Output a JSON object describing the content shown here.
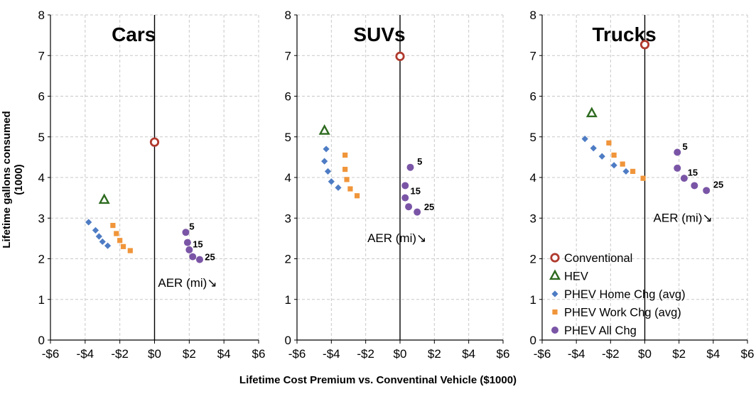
{
  "figure": {
    "xlabel": "Lifetime Cost Premium vs. Conventinal Vehicle ($1000)",
    "ylabel": "Lifetime gallons consumed (1000)"
  },
  "legend": [
    {
      "label": "Conventional",
      "series": "conventional"
    },
    {
      "label": "HEV",
      "series": "hev"
    },
    {
      "label": "PHEV Home Chg (avg)",
      "series": "phev_home"
    },
    {
      "label": "PHEV Work Chg (avg)",
      "series": "phev_work"
    },
    {
      "label": "PHEV All Chg",
      "series": "phev_all"
    }
  ],
  "colors": {
    "conventional": "#b03a2e",
    "hev": "#2d6a1f",
    "phev_home": "#4e7cc4",
    "phev_work": "#f0953a",
    "phev_all": "#7a55a6",
    "grid": "#c8c8c8"
  },
  "chart_data": [
    {
      "type": "scatter",
      "title": "Cars",
      "xlim": [
        -6,
        6
      ],
      "ylim": [
        0,
        8
      ],
      "xticks": [
        "-$6",
        "-$4",
        "-$2",
        "$0",
        "$2",
        "$4",
        "$6"
      ],
      "yticks": [
        "0",
        "1",
        "2",
        "3",
        "4",
        "5",
        "6",
        "7",
        "8"
      ],
      "grid": true,
      "series": [
        {
          "key": "conventional",
          "points": [
            [
              0,
              4.87
            ]
          ]
        },
        {
          "key": "hev",
          "points": [
            [
              -2.9,
              3.45
            ]
          ]
        },
        {
          "key": "phev_home",
          "points": [
            [
              -3.8,
              2.9
            ],
            [
              -3.4,
              2.7
            ],
            [
              -3.2,
              2.55
            ],
            [
              -3.0,
              2.42
            ],
            [
              -2.7,
              2.32
            ]
          ]
        },
        {
          "key": "phev_work",
          "points": [
            [
              -2.4,
              2.82
            ],
            [
              -2.2,
              2.62
            ],
            [
              -2.0,
              2.45
            ],
            [
              -1.8,
              2.3
            ],
            [
              -1.4,
              2.2
            ]
          ]
        },
        {
          "key": "phev_all",
          "points": [
            [
              1.8,
              2.65
            ],
            [
              1.9,
              2.4
            ],
            [
              2.0,
              2.22
            ],
            [
              2.2,
              2.05
            ],
            [
              2.6,
              1.98
            ]
          ]
        }
      ],
      "annotations": [
        {
          "text": "5",
          "x": 2.0,
          "y": 2.8
        },
        {
          "text": "15",
          "x": 2.2,
          "y": 2.37
        },
        {
          "text": "25",
          "x": 2.9,
          "y": 2.05
        },
        {
          "text": "AER (mi)↘",
          "x": 0.2,
          "y": 1.4
        }
      ]
    },
    {
      "type": "scatter",
      "title": "SUVs",
      "xlim": [
        -6,
        6
      ],
      "ylim": [
        0,
        8
      ],
      "xticks": [
        "-$6",
        "-$4",
        "-$2",
        "$0",
        "$2",
        "$4",
        "$6"
      ],
      "yticks": [
        "0",
        "1",
        "2",
        "3",
        "4",
        "5",
        "6",
        "7",
        "8"
      ],
      "grid": true,
      "series": [
        {
          "key": "conventional",
          "points": [
            [
              0,
              6.98
            ]
          ]
        },
        {
          "key": "hev",
          "points": [
            [
              -4.4,
              5.15
            ]
          ]
        },
        {
          "key": "phev_home",
          "points": [
            [
              -4.3,
              4.7
            ],
            [
              -4.4,
              4.4
            ],
            [
              -4.2,
              4.15
            ],
            [
              -4.0,
              3.9
            ],
            [
              -3.6,
              3.75
            ]
          ]
        },
        {
          "key": "phev_work",
          "points": [
            [
              -3.2,
              4.55
            ],
            [
              -3.2,
              4.2
            ],
            [
              -3.1,
              3.95
            ],
            [
              -2.9,
              3.72
            ],
            [
              -2.5,
              3.55
            ]
          ]
        },
        {
          "key": "phev_all",
          "points": [
            [
              0.6,
              4.25
            ],
            [
              0.3,
              3.8
            ],
            [
              0.3,
              3.5
            ],
            [
              0.5,
              3.28
            ],
            [
              1.0,
              3.15
            ]
          ]
        }
      ],
      "annotations": [
        {
          "text": "5",
          "x": 1.0,
          "y": 4.4
        },
        {
          "text": "15",
          "x": 0.6,
          "y": 3.68
        },
        {
          "text": "25",
          "x": 1.4,
          "y": 3.28
        },
        {
          "text": "AER (mi)↘",
          "x": -1.9,
          "y": 2.5
        }
      ]
    },
    {
      "type": "scatter",
      "title": "Trucks",
      "xlim": [
        -6,
        6
      ],
      "ylim": [
        0,
        8
      ],
      "xticks": [
        "-$6",
        "-$4",
        "-$2",
        "$0",
        "$2",
        "$4",
        "$6"
      ],
      "yticks": [
        "0",
        "1",
        "2",
        "3",
        "4",
        "5",
        "6",
        "7",
        "8"
      ],
      "grid": true,
      "series": [
        {
          "key": "conventional",
          "points": [
            [
              0,
              7.27
            ]
          ]
        },
        {
          "key": "hev",
          "points": [
            [
              -3.1,
              5.58
            ]
          ]
        },
        {
          "key": "phev_home",
          "points": [
            [
              -3.5,
              4.95
            ],
            [
              -3.0,
              4.72
            ],
            [
              -2.5,
              4.52
            ],
            [
              -1.8,
              4.3
            ],
            [
              -1.1,
              4.15
            ]
          ]
        },
        {
          "key": "phev_work",
          "points": [
            [
              -2.1,
              4.85
            ],
            [
              -1.8,
              4.55
            ],
            [
              -1.3,
              4.33
            ],
            [
              -0.7,
              4.15
            ],
            [
              -0.1,
              3.98
            ]
          ]
        },
        {
          "key": "phev_all",
          "points": [
            [
              1.9,
              4.62
            ],
            [
              1.9,
              4.23
            ],
            [
              2.3,
              3.98
            ],
            [
              2.9,
              3.8
            ],
            [
              3.6,
              3.68
            ]
          ]
        }
      ],
      "annotations": [
        {
          "text": "5",
          "x": 2.2,
          "y": 4.77
        },
        {
          "text": "15",
          "x": 2.5,
          "y": 4.13
        },
        {
          "text": "25",
          "x": 4.0,
          "y": 3.83
        },
        {
          "text": "AER (mi)↘",
          "x": 0.5,
          "y": 3.0
        }
      ]
    }
  ]
}
